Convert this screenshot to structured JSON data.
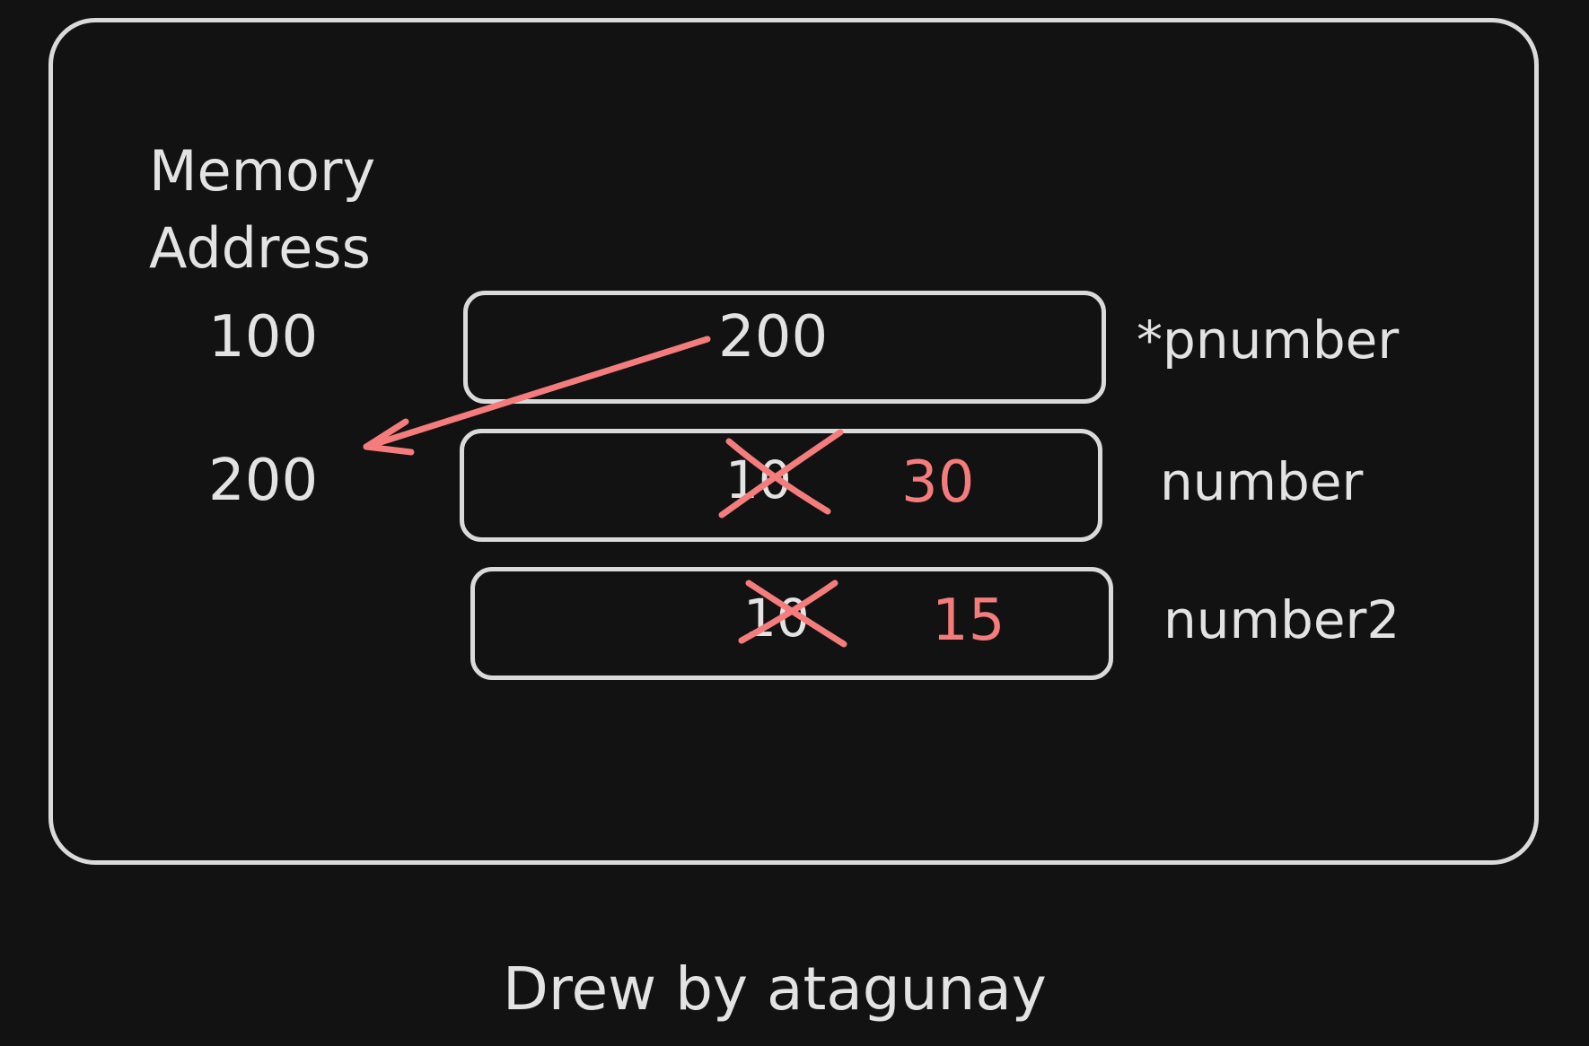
{
  "diagram": {
    "title": "Memory Address",
    "addresses": [
      "100",
      "200"
    ],
    "cells": [
      {
        "value": "200",
        "variable": "*pnumber"
      },
      {
        "old_value": "10",
        "new_value": "30",
        "variable": "number"
      },
      {
        "old_value": "10",
        "new_value": "15",
        "variable": "number2"
      }
    ],
    "credit": "Drew by atagunay"
  },
  "colors": {
    "background": "#121212",
    "stroke": "#dadada",
    "text": "#e3e3e3",
    "accent": "#f47c7c"
  }
}
